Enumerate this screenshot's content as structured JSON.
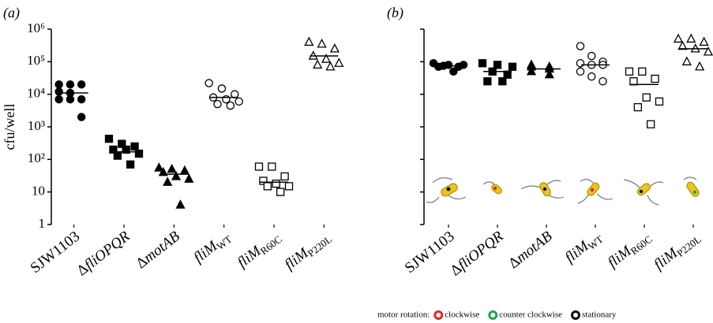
{
  "chart_data": [
    {
      "type": "strip",
      "panel_label": "(a)",
      "y_label": "cfu/well",
      "log_y": true,
      "categories": [
        "SJW1103",
        "ΔfliOPQR",
        "ΔmotAB",
        "fliM",
        "fliM",
        "fliM"
      ],
      "category_subscripts": [
        null,
        null,
        null,
        "WT",
        "R60C",
        "P220L"
      ],
      "markers": [
        "filled-circle",
        "filled-square",
        "filled-triangle",
        "open-circle",
        "open-square",
        "open-triangle"
      ],
      "color": "#000000",
      "values": [
        [
          20000,
          20000,
          20000,
          12000,
          11000,
          7000,
          7000,
          7000,
          2000
        ],
        [
          430,
          300,
          250,
          200,
          200,
          150,
          130,
          70
        ],
        [
          55,
          50,
          45,
          40,
          30,
          25,
          20,
          4
        ],
        [
          22000,
          15000,
          10000,
          8000,
          7000,
          6000,
          5000,
          4500
        ],
        [
          60,
          60,
          30,
          22,
          18,
          15,
          15,
          10
        ],
        [
          400000,
          350000,
          250000,
          150000,
          120000,
          90000,
          80000,
          70000
        ]
      ],
      "medians": [
        11000,
        170,
        35,
        8000,
        20,
        150000
      ],
      "ylim": [
        1,
        1000000
      ],
      "yticks": [
        1,
        10,
        {
          "value": 100,
          "label": "10²"
        },
        {
          "value": 1000,
          "label": "10³"
        },
        {
          "value": 10000,
          "label": "10⁴"
        },
        {
          "value": 100000,
          "label": "10⁵"
        },
        {
          "value": 1000000,
          "label": "10⁶"
        }
      ],
      "ytick_labels": true
    },
    {
      "type": "strip",
      "panel_label": "(b)",
      "log_y": true,
      "categories": [
        "SJW1103",
        "ΔfliOPQR",
        "ΔmotAB",
        "fliM",
        "fliM",
        "fliM"
      ],
      "category_subscripts": [
        null,
        null,
        null,
        "WT",
        "R60C",
        "P220L"
      ],
      "markers": [
        "filled-circle",
        "filled-square",
        "filled-triangle",
        "open-circle",
        "open-square",
        "open-triangle"
      ],
      "color": "#000000",
      "values": [
        [
          90000,
          80000,
          80000,
          75000,
          70000,
          70000,
          50000
        ],
        [
          90000,
          80000,
          70000,
          50000,
          40000,
          25000,
          25000
        ],
        [
          80000,
          70000,
          70000,
          60000,
          50000,
          40000
        ],
        [
          300000,
          150000,
          100000,
          90000,
          80000,
          80000,
          50000,
          35000,
          25000
        ],
        [
          50000,
          50000,
          30000,
          25000,
          8000,
          6000,
          4000,
          1200
        ],
        [
          500000,
          500000,
          400000,
          300000,
          250000,
          200000,
          100000,
          70000
        ]
      ],
      "medians": [
        75000,
        50000,
        60000,
        80000,
        20000,
        250000
      ],
      "ylim": [
        1,
        1000000
      ],
      "yticks": [
        1,
        10,
        100,
        1000,
        10000,
        100000,
        1000000
      ],
      "ytick_labels": false,
      "legend_title": "motor rotation:",
      "legend_items": [
        {
          "label": "clockwise",
          "color": "#e0282a"
        },
        {
          "label": "counter clockwise",
          "color": "#22a64a"
        },
        {
          "label": "stationary",
          "color": "#111111"
        }
      ]
    }
  ]
}
